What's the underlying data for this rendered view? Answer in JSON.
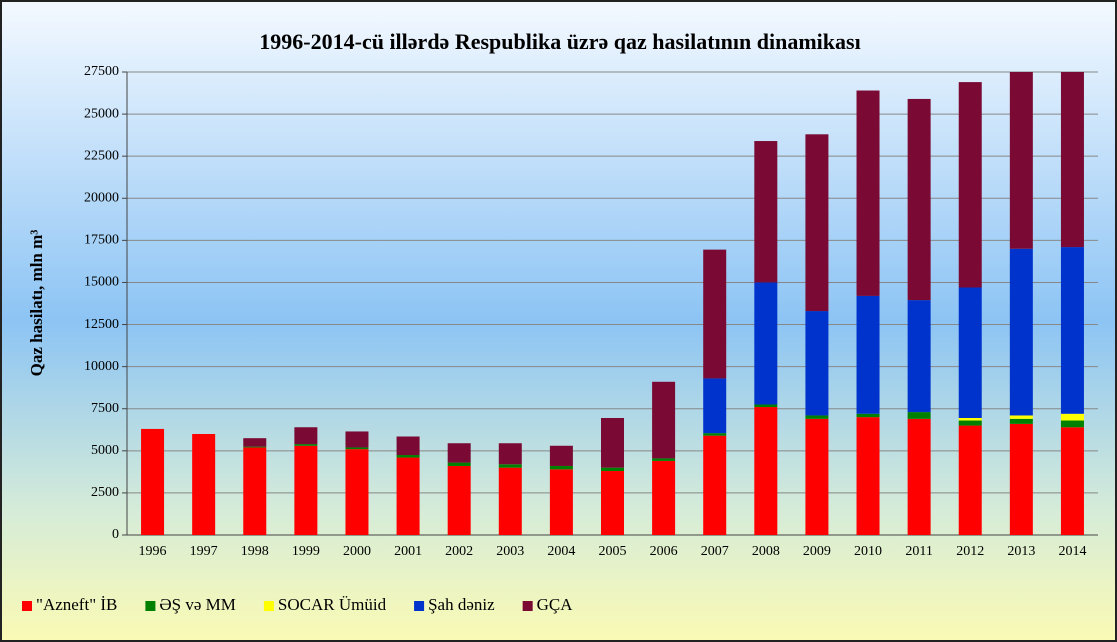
{
  "chart_data": {
    "type": "stacked_bar",
    "title": "1996-2014-cü illərdə Respublika üzrə qaz hasilatının dinamikası",
    "y_label": "Qaz hasilatı, mln m³",
    "categories": [
      "1996",
      "1997",
      "1998",
      "1999",
      "2000",
      "2001",
      "2002",
      "2003",
      "2004",
      "2005",
      "2006",
      "2007",
      "2008",
      "2009",
      "2010",
      "2011",
      "2012",
      "2013",
      "2014"
    ],
    "series": [
      {
        "name": "\"Azneft\" İB",
        "color": "#ff0000",
        "values": [
          6300,
          6000,
          5200,
          5300,
          5100,
          4600,
          4100,
          4000,
          3900,
          3800,
          4400,
          5900,
          7600,
          6900,
          7000,
          6900,
          6500,
          6600,
          6400
        ]
      },
      {
        "name": "ƏŞ və MM",
        "color": "#008000",
        "values": [
          0,
          0,
          50,
          100,
          100,
          150,
          200,
          200,
          200,
          200,
          150,
          150,
          150,
          200,
          200,
          400,
          300,
          300,
          400
        ]
      },
      {
        "name": "SOCAR Ümüid",
        "color": "#ffff00",
        "values": [
          0,
          0,
          0,
          0,
          0,
          0,
          0,
          0,
          0,
          0,
          0,
          0,
          0,
          0,
          0,
          0,
          150,
          200,
          400
        ]
      },
      {
        "name": "Şah dəniz",
        "color": "#0033cc",
        "values": [
          0,
          0,
          0,
          0,
          0,
          0,
          0,
          0,
          0,
          0,
          0,
          3250,
          7250,
          6200,
          7000,
          6650,
          7750,
          9900,
          9900
        ]
      },
      {
        "name": "GÇA",
        "color": "#7a0a33",
        "values": [
          0,
          0,
          500,
          1000,
          950,
          1100,
          1150,
          1250,
          1200,
          2950,
          4550,
          7650,
          8400,
          10500,
          12200,
          11950,
          12200,
          10500,
          10400
        ]
      }
    ],
    "ylim": [
      0,
      27500
    ],
    "yticks": [
      0,
      2500,
      5000,
      7500,
      10000,
      12500,
      15000,
      17500,
      20000,
      22500,
      25000,
      27500
    ],
    "grid": true,
    "legend": "bottom"
  }
}
